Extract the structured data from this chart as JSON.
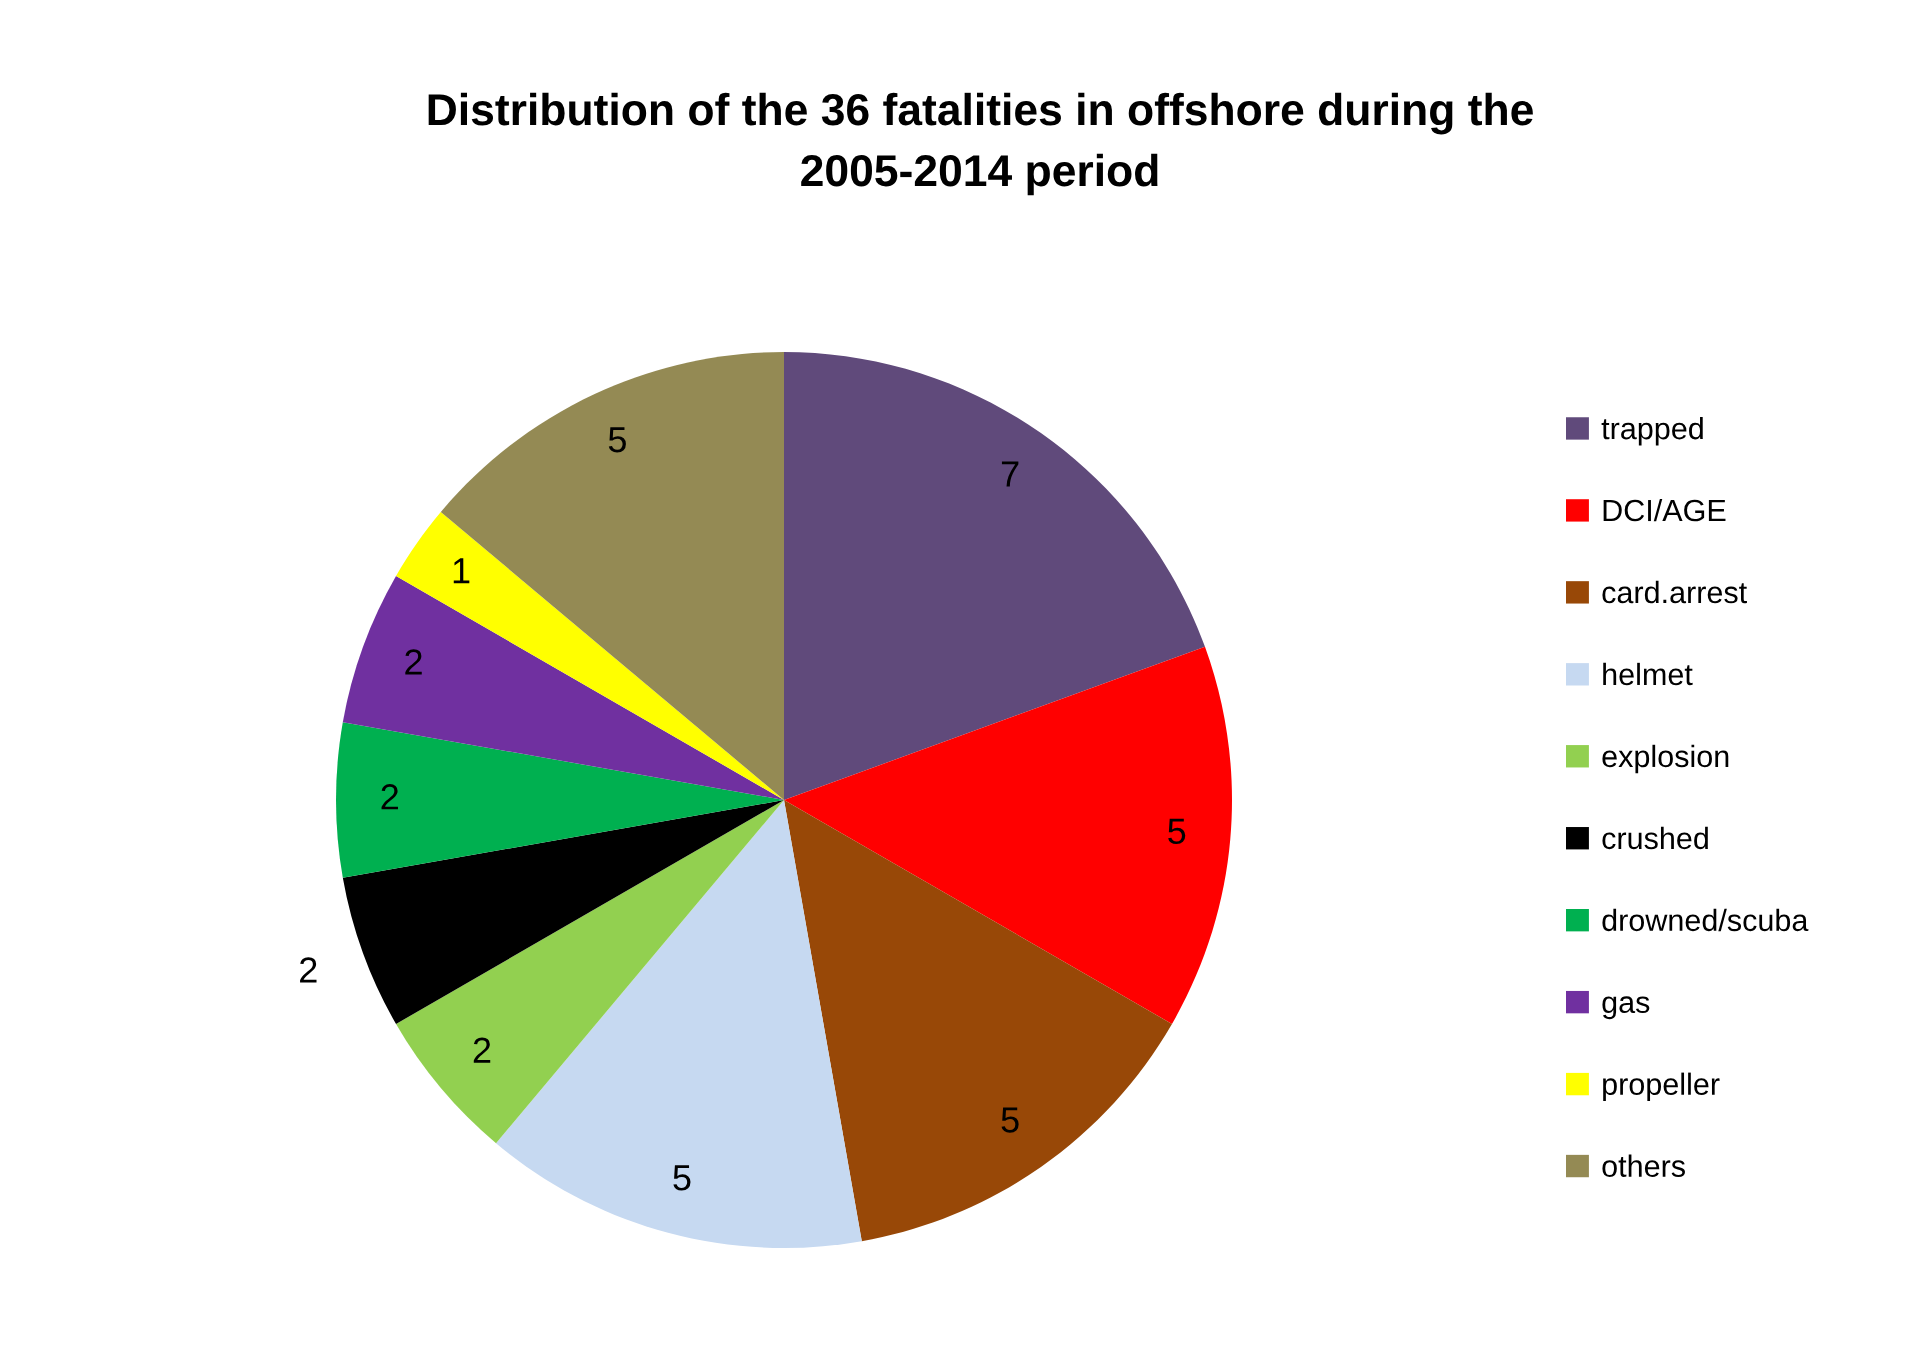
{
  "chart_data": {
    "type": "pie",
    "title": "Distribution of the 36 fatalities in offshore during the\n2005-2014 period",
    "categories": [
      "trapped",
      "DCI/AGE",
      "card.arrest",
      "helmet",
      "explosion",
      "crushed",
      "drowned/scuba",
      "gas",
      "propeller",
      "others"
    ],
    "values": [
      7,
      5,
      5,
      5,
      2,
      2,
      2,
      2,
      1,
      5
    ],
    "colors": [
      "#604a7b",
      "#ff0000",
      "#984807",
      "#c6d9f1",
      "#92d050",
      "#000000",
      "#00b050",
      "#7030a0",
      "#ffff00",
      "#948a54"
    ],
    "data_labels": true,
    "legend": "right"
  }
}
